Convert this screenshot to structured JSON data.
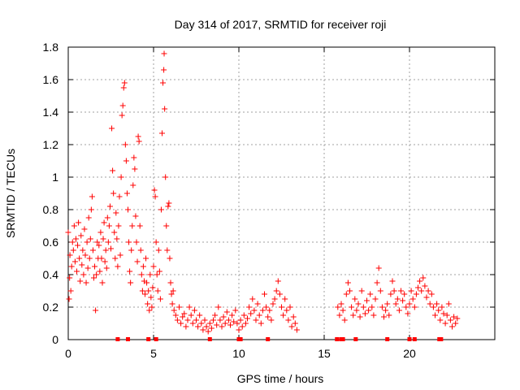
{
  "chart_data": {
    "type": "scatter",
    "title": "Day 314 of 2017, SRMTID for receiver roji",
    "xlabel": "GPS time / hours",
    "ylabel": "SRMTID / TECUs",
    "xlim": [
      0,
      25
    ],
    "ylim": [
      0,
      1.8
    ],
    "xticks": [
      0,
      5,
      10,
      15,
      20
    ],
    "xtick_labels": [
      "0",
      "5",
      "10",
      "15",
      "20"
    ],
    "yticks": [
      0,
      0.2,
      0.4,
      0.6,
      0.8,
      1,
      1.2,
      1.4,
      1.6,
      1.8
    ],
    "ytick_labels": [
      "0",
      "0.2",
      "0.4",
      "0.6",
      "0.8",
      "1",
      "1.2",
      "1.4",
      "1.6",
      "1.8"
    ],
    "grid": true,
    "marker": "+",
    "color": "#ff0000",
    "series": [
      {
        "name": "SRMTID",
        "points": [
          [
            0.0,
            0.66
          ],
          [
            0.05,
            0.25
          ],
          [
            0.08,
            0.38
          ],
          [
            0.1,
            0.52
          ],
          [
            0.15,
            0.3
          ],
          [
            0.2,
            0.45
          ],
          [
            0.25,
            0.6
          ],
          [
            0.3,
            0.55
          ],
          [
            0.35,
            0.7
          ],
          [
            0.4,
            0.48
          ],
          [
            0.45,
            0.62
          ],
          [
            0.5,
            0.42
          ],
          [
            0.55,
            0.58
          ],
          [
            0.6,
            0.72
          ],
          [
            0.65,
            0.5
          ],
          [
            0.7,
            0.36
          ],
          [
            0.75,
            0.64
          ],
          [
            0.8,
            0.46
          ],
          [
            0.85,
            0.55
          ],
          [
            0.9,
            0.4
          ],
          [
            0.95,
            0.68
          ],
          [
            1.0,
            0.52
          ],
          [
            1.05,
            0.35
          ],
          [
            1.1,
            0.6
          ],
          [
            1.15,
            0.44
          ],
          [
            1.2,
            0.75
          ],
          [
            1.25,
            0.5
          ],
          [
            1.3,
            0.62
          ],
          [
            1.35,
            0.8
          ],
          [
            1.4,
            0.88
          ],
          [
            1.45,
            0.55
          ],
          [
            1.5,
            0.38
          ],
          [
            1.55,
            0.45
          ],
          [
            1.6,
            0.18
          ],
          [
            1.65,
            0.4
          ],
          [
            1.7,
            0.6
          ],
          [
            1.75,
            0.5
          ],
          [
            1.8,
            0.58
          ],
          [
            1.85,
            0.42
          ],
          [
            1.9,
            0.66
          ],
          [
            1.95,
            0.5
          ],
          [
            2.0,
            0.35
          ],
          [
            2.05,
            0.62
          ],
          [
            2.1,
            0.72
          ],
          [
            2.15,
            0.48
          ],
          [
            2.2,
            0.55
          ],
          [
            2.25,
            0.44
          ],
          [
            2.3,
            0.75
          ],
          [
            2.35,
            0.6
          ],
          [
            2.4,
            0.7
          ],
          [
            2.45,
            0.82
          ],
          [
            2.5,
            0.56
          ],
          [
            2.55,
            1.3
          ],
          [
            2.6,
            1.04
          ],
          [
            2.65,
            0.9
          ],
          [
            2.7,
            0.66
          ],
          [
            2.75,
            0.5
          ],
          [
            2.8,
            0.78
          ],
          [
            2.85,
            0.62
          ],
          [
            2.9,
            0.45
          ],
          [
            2.95,
            0.7
          ],
          [
            3.0,
            0.88
          ],
          [
            3.05,
            0.52
          ],
          [
            3.1,
            1.0
          ],
          [
            3.15,
            1.38
          ],
          [
            3.2,
            1.44
          ],
          [
            3.25,
            1.55
          ],
          [
            3.3,
            1.58
          ],
          [
            3.35,
            1.2
          ],
          [
            3.4,
            1.1
          ],
          [
            3.45,
            0.9
          ],
          [
            3.5,
            0.8
          ],
          [
            3.55,
            0.6
          ],
          [
            3.6,
            0.42
          ],
          [
            3.65,
            0.35
          ],
          [
            3.7,
            0.55
          ],
          [
            3.75,
            0.7
          ],
          [
            3.8,
            0.95
          ],
          [
            3.85,
            1.12
          ],
          [
            3.9,
            1.05
          ],
          [
            3.95,
            0.76
          ],
          [
            4.0,
            0.6
          ],
          [
            4.05,
            0.48
          ],
          [
            4.1,
            1.25
          ],
          [
            4.15,
            1.22
          ],
          [
            4.2,
            0.7
          ],
          [
            4.25,
            0.55
          ],
          [
            4.3,
            0.4
          ],
          [
            4.35,
            0.3
          ],
          [
            4.4,
            0.45
          ],
          [
            4.45,
            0.36
          ],
          [
            4.5,
            0.28
          ],
          [
            4.55,
            0.5
          ],
          [
            4.6,
            0.35
          ],
          [
            4.65,
            0.22
          ],
          [
            4.7,
            0.3
          ],
          [
            4.75,
            0.18
          ],
          [
            4.8,
            0.4
          ],
          [
            4.85,
            0.26
          ],
          [
            4.9,
            0.2
          ],
          [
            4.95,
            0.32
          ],
          [
            5.0,
            0.45
          ],
          [
            5.05,
            0.92
          ],
          [
            5.1,
            0.88
          ],
          [
            5.15,
            0.6
          ],
          [
            5.2,
            0.4
          ],
          [
            5.25,
            0.3
          ],
          [
            5.3,
            0.55
          ],
          [
            5.35,
            0.42
          ],
          [
            5.4,
            0.25
          ],
          [
            5.45,
            0.8
          ],
          [
            5.5,
            1.27
          ],
          [
            5.55,
            1.58
          ],
          [
            5.6,
            1.66
          ],
          [
            5.62,
            1.76
          ],
          [
            5.65,
            1.42
          ],
          [
            5.7,
            1.0
          ],
          [
            5.75,
            0.7
          ],
          [
            5.8,
            0.55
          ],
          [
            5.85,
            0.82
          ],
          [
            5.9,
            0.84
          ],
          [
            5.95,
            0.5
          ],
          [
            6.0,
            0.35
          ],
          [
            6.05,
            0.28
          ],
          [
            6.1,
            0.22
          ],
          [
            6.15,
            0.3
          ],
          [
            6.2,
            0.18
          ],
          [
            6.3,
            0.15
          ],
          [
            6.4,
            0.12
          ],
          [
            6.5,
            0.2
          ],
          [
            6.6,
            0.1
          ],
          [
            6.7,
            0.14
          ],
          [
            6.8,
            0.16
          ],
          [
            6.9,
            0.08
          ],
          [
            7.0,
            0.12
          ],
          [
            7.1,
            0.2
          ],
          [
            7.2,
            0.15
          ],
          [
            7.3,
            0.1
          ],
          [
            7.4,
            0.18
          ],
          [
            7.5,
            0.12
          ],
          [
            7.6,
            0.08
          ],
          [
            7.7,
            0.15
          ],
          [
            7.8,
            0.1
          ],
          [
            7.9,
            0.06
          ],
          [
            8.0,
            0.12
          ],
          [
            8.1,
            0.08
          ],
          [
            8.2,
            0.05
          ],
          [
            8.3,
            0.1
          ],
          [
            8.4,
            0.07
          ],
          [
            8.5,
            0.12
          ],
          [
            8.6,
            0.15
          ],
          [
            8.7,
            0.09
          ],
          [
            8.8,
            0.2
          ],
          [
            8.9,
            0.12
          ],
          [
            9.0,
            0.08
          ],
          [
            9.1,
            0.14
          ],
          [
            9.2,
            0.1
          ],
          [
            9.3,
            0.17
          ],
          [
            9.4,
            0.12
          ],
          [
            9.5,
            0.09
          ],
          [
            9.6,
            0.15
          ],
          [
            9.7,
            0.11
          ],
          [
            9.8,
            0.18
          ],
          [
            9.9,
            0.1
          ],
          [
            10.0,
            0.06
          ],
          [
            10.1,
            0.12
          ],
          [
            10.2,
            0.08
          ],
          [
            10.3,
            0.15
          ],
          [
            10.4,
            0.1
          ],
          [
            10.5,
            0.13
          ],
          [
            10.6,
            0.2
          ],
          [
            10.7,
            0.16
          ],
          [
            10.8,
            0.25
          ],
          [
            10.9,
            0.18
          ],
          [
            11.0,
            0.12
          ],
          [
            11.1,
            0.22
          ],
          [
            11.2,
            0.15
          ],
          [
            11.3,
            0.1
          ],
          [
            11.4,
            0.18
          ],
          [
            11.5,
            0.28
          ],
          [
            11.6,
            0.2
          ],
          [
            11.7,
            0.14
          ],
          [
            11.8,
            0.18
          ],
          [
            11.9,
            0.12
          ],
          [
            12.0,
            0.22
          ],
          [
            12.1,
            0.25
          ],
          [
            12.2,
            0.3
          ],
          [
            12.3,
            0.36
          ],
          [
            12.4,
            0.28
          ],
          [
            12.5,
            0.2
          ],
          [
            12.6,
            0.15
          ],
          [
            12.7,
            0.25
          ],
          [
            12.8,
            0.18
          ],
          [
            12.9,
            0.12
          ],
          [
            13.0,
            0.2
          ],
          [
            13.1,
            0.08
          ],
          [
            13.2,
            0.14
          ],
          [
            13.3,
            0.1
          ],
          [
            13.4,
            0.06
          ],
          [
            15.8,
            0.2
          ],
          [
            15.9,
            0.15
          ],
          [
            16.0,
            0.22
          ],
          [
            16.1,
            0.18
          ],
          [
            16.2,
            0.12
          ],
          [
            16.3,
            0.28
          ],
          [
            16.4,
            0.35
          ],
          [
            16.5,
            0.3
          ],
          [
            16.6,
            0.2
          ],
          [
            16.7,
            0.15
          ],
          [
            16.8,
            0.25
          ],
          [
            16.9,
            0.18
          ],
          [
            17.0,
            0.22
          ],
          [
            17.1,
            0.14
          ],
          [
            17.2,
            0.3
          ],
          [
            17.3,
            0.2
          ],
          [
            17.4,
            0.16
          ],
          [
            17.5,
            0.24
          ],
          [
            17.6,
            0.18
          ],
          [
            17.7,
            0.28
          ],
          [
            17.8,
            0.2
          ],
          [
            17.9,
            0.15
          ],
          [
            18.0,
            0.25
          ],
          [
            18.1,
            0.35
          ],
          [
            18.2,
            0.44
          ],
          [
            18.3,
            0.3
          ],
          [
            18.4,
            0.2
          ],
          [
            18.5,
            0.14
          ],
          [
            18.6,
            0.18
          ],
          [
            18.7,
            0.22
          ],
          [
            18.8,
            0.15
          ],
          [
            18.9,
            0.28
          ],
          [
            19.0,
            0.36
          ],
          [
            19.1,
            0.3
          ],
          [
            19.2,
            0.22
          ],
          [
            19.3,
            0.25
          ],
          [
            19.4,
            0.18
          ],
          [
            19.5,
            0.3
          ],
          [
            19.6,
            0.24
          ],
          [
            19.7,
            0.28
          ],
          [
            19.8,
            0.2
          ],
          [
            19.9,
            0.16
          ],
          [
            20.0,
            0.22
          ],
          [
            20.1,
            0.3
          ],
          [
            20.2,
            0.25
          ],
          [
            20.3,
            0.2
          ],
          [
            20.4,
            0.28
          ],
          [
            20.5,
            0.32
          ],
          [
            20.6,
            0.36
          ],
          [
            20.7,
            0.3
          ],
          [
            20.8,
            0.38
          ],
          [
            20.9,
            0.33
          ],
          [
            21.0,
            0.26
          ],
          [
            21.1,
            0.3
          ],
          [
            21.2,
            0.22
          ],
          [
            21.3,
            0.28
          ],
          [
            21.4,
            0.2
          ],
          [
            21.5,
            0.15
          ],
          [
            21.6,
            0.22
          ],
          [
            21.7,
            0.18
          ],
          [
            21.8,
            0.12
          ],
          [
            21.9,
            0.2
          ],
          [
            22.0,
            0.16
          ],
          [
            22.1,
            0.1
          ],
          [
            22.2,
            0.15
          ],
          [
            22.3,
            0.22
          ],
          [
            22.4,
            0.12
          ],
          [
            22.5,
            0.08
          ],
          [
            22.6,
            0.14
          ],
          [
            22.7,
            0.1
          ],
          [
            22.8,
            0.13
          ]
        ]
      }
    ],
    "zero_markers_x": [
      2.9,
      3.5,
      4.7,
      5.15,
      8.3,
      10.0,
      10.1,
      11.7,
      15.75,
      16.0,
      16.1,
      16.85,
      18.7,
      20.0,
      20.3,
      21.75,
      21.85
    ]
  }
}
